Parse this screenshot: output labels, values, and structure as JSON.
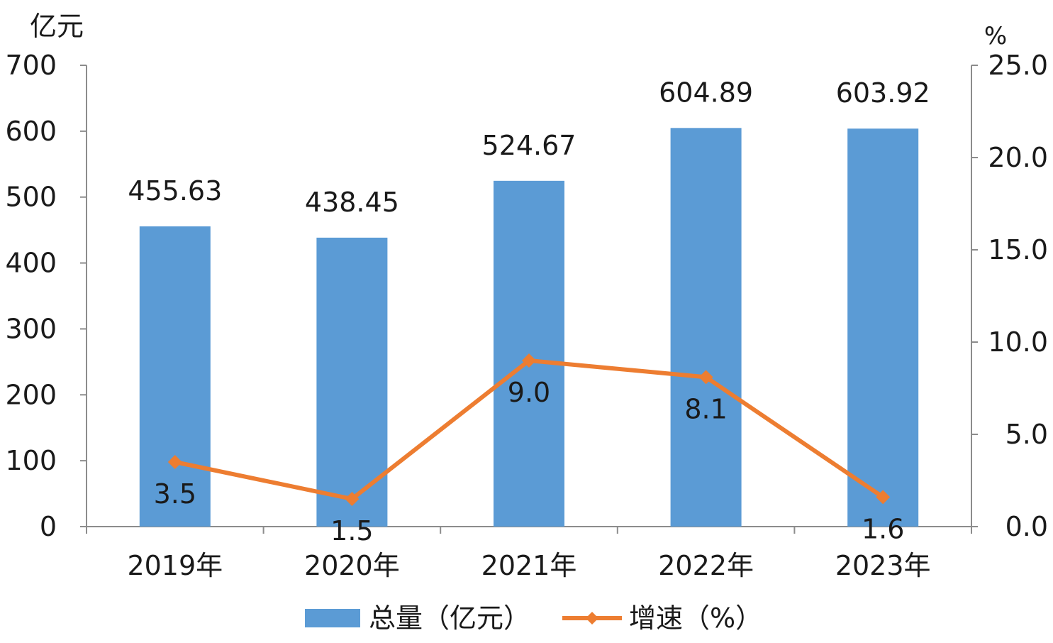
{
  "chart_data": {
    "type": "bar",
    "title": "",
    "categories": [
      "2019年",
      "2020年",
      "2021年",
      "2022年",
      "2023年"
    ],
    "series": [
      {
        "name": "总量（亿元）",
        "type": "bar",
        "axis": "left",
        "values": [
          455.63,
          438.45,
          524.67,
          604.89,
          603.92
        ],
        "labels": [
          "455.63",
          "438.45",
          "524.67",
          "604.89",
          "603.92"
        ]
      },
      {
        "name": "增速（%）",
        "type": "line",
        "axis": "right",
        "marker": "diamond",
        "values": [
          3.5,
          1.5,
          9.0,
          8.1,
          1.6
        ],
        "labels": [
          "3.5",
          "1.5",
          "9.0",
          "8.1",
          "1.6"
        ]
      }
    ],
    "y_left": {
      "unit": "亿元",
      "ylim": [
        0,
        700
      ],
      "ticks": [
        "0",
        "100",
        "200",
        "300",
        "400",
        "500",
        "600",
        "700"
      ]
    },
    "y_right": {
      "unit": "%",
      "ylim": [
        0,
        25
      ],
      "ticks": [
        "0.0",
        "5.0",
        "10.0",
        "15.0",
        "20.0",
        "25.0"
      ]
    },
    "grid": false,
    "legend_position": "bottom-center",
    "colors": {
      "bar": "#5b9bd5",
      "line": "#ed7d31",
      "axis": "#8c8c8c",
      "text": "#1a1a1a"
    }
  }
}
